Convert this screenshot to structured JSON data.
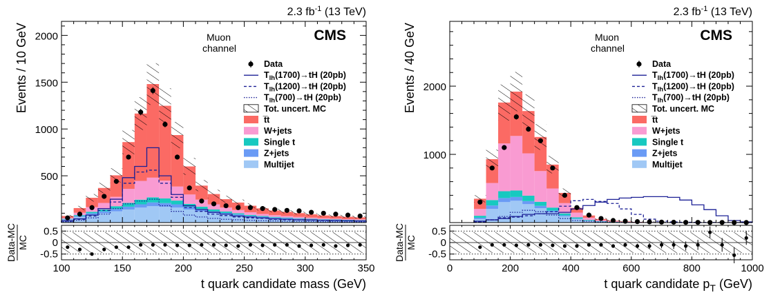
{
  "colors": {
    "ttbar": "#fb6a64",
    "wjets": "#f99bd2",
    "single_t": "#17c9c0",
    "zjets": "#6a9bf5",
    "multijet": "#a0c8f5",
    "signal": "#1a1f95"
  },
  "chart_data": [
    {
      "type": "bar",
      "stacked": true,
      "lumi": "2.3 fb",
      "lumi_sup": "-1",
      "energy": "(13 TeV)",
      "experiment": "CMS",
      "channel_line1": "Muon",
      "channel_line2": "channel",
      "xlabel": "t quark candidate mass (GeV)",
      "xlabel_sub": "",
      "ylabel": "Events / 10 GeV",
      "ratio_ylabel_top": "Data-MC",
      "ratio_ylabel_bottom": "MC",
      "xlim": [
        100,
        350
      ],
      "ylim": [
        0,
        2150
      ],
      "ratio_ylim": [
        -0.75,
        0.75
      ],
      "xticks": [
        100,
        150,
        200,
        250,
        300,
        350
      ],
      "xtick_labels": [
        "100",
        "150",
        "200",
        "250",
        "300",
        "350"
      ],
      "yticks": [
        500,
        1000,
        1500,
        2000
      ],
      "ytick_labels": [
        "500",
        "1000",
        "1500",
        "2000"
      ],
      "ratio_yticks": [
        0.5,
        0,
        -0.5
      ],
      "ratio_ytick_labels": [
        "0.5",
        "0",
        "-0.5"
      ],
      "bin_edges": [
        100,
        110,
        120,
        130,
        140,
        150,
        160,
        170,
        180,
        190,
        200,
        210,
        220,
        230,
        240,
        250,
        260,
        270,
        280,
        290,
        300,
        310,
        320,
        330,
        340,
        350
      ],
      "legend": [
        {
          "key": "data",
          "label": "Data"
        },
        {
          "key": "sig1",
          "label_main": "T",
          "label_sub": "lh",
          "label_rest": "(1700)→tH (20pb)"
        },
        {
          "key": "sig2",
          "label_main": "T",
          "label_sub": "lh",
          "label_rest": "(1200)→tH (20pb)"
        },
        {
          "key": "sig3",
          "label_main": "T",
          "label_sub": "lh",
          "label_rest": "(700)→tH (20pb)"
        },
        {
          "key": "unc",
          "label": "Tot. uncert. MC"
        },
        {
          "key": "ttbar",
          "label": "t̅t"
        },
        {
          "key": "wjets",
          "label": "W+jets"
        },
        {
          "key": "single_t",
          "label": "Single t"
        },
        {
          "key": "zjets",
          "label": "Z+jets"
        },
        {
          "key": "multijet",
          "label": "Multijet"
        }
      ],
      "series": [
        {
          "key": "multijet",
          "values": [
            30,
            60,
            85,
            100,
            120,
            140,
            160,
            175,
            170,
            160,
            140,
            120,
            100,
            85,
            72,
            60,
            52,
            45,
            40,
            35,
            30,
            27,
            24,
            22,
            20
          ]
        },
        {
          "key": "zjets",
          "values": [
            5,
            10,
            15,
            20,
            25,
            30,
            35,
            40,
            38,
            35,
            30,
            25,
            20,
            18,
            15,
            12,
            10,
            9,
            8,
            7,
            6,
            5,
            5,
            4,
            4
          ]
        },
        {
          "key": "single_t",
          "values": [
            5,
            10,
            15,
            20,
            30,
            40,
            50,
            55,
            50,
            40,
            30,
            25,
            20,
            15,
            12,
            10,
            8,
            7,
            6,
            5,
            5,
            4,
            4,
            3,
            3
          ]
        },
        {
          "key": "wjets",
          "values": [
            10,
            25,
            50,
            70,
            100,
            150,
            200,
            210,
            190,
            150,
            100,
            75,
            55,
            42,
            35,
            28,
            22,
            18,
            16,
            14,
            12,
            10,
            9,
            8,
            7
          ]
        },
        {
          "key": "ttbar",
          "values": [
            20,
            50,
            100,
            160,
            230,
            500,
            720,
            1000,
            800,
            550,
            300,
            150,
            110,
            90,
            80,
            70,
            60,
            50,
            45,
            40,
            35,
            30,
            28,
            25,
            22
          ]
        }
      ],
      "data": {
        "x": [
          105,
          115,
          125,
          135,
          145,
          155,
          165,
          175,
          185,
          195,
          205,
          215,
          225,
          235,
          245,
          255,
          265,
          275,
          285,
          295,
          305,
          315,
          325,
          335,
          345
        ],
        "y": [
          50,
          90,
          160,
          280,
          440,
          700,
          1180,
          1410,
          1050,
          700,
          370,
          230,
          200,
          180,
          160,
          160,
          150,
          140,
          130,
          125,
          110,
          100,
          90,
          80,
          70
        ]
      },
      "signals": [
        {
          "key": "sig1",
          "style": "solid",
          "values": [
            20,
            40,
            80,
            150,
            250,
            480,
            600,
            800,
            500,
            300,
            180,
            140,
            110,
            90,
            70,
            60,
            50,
            40,
            35,
            30,
            28,
            25,
            22,
            20,
            18
          ]
        },
        {
          "key": "sig2",
          "style": "dashed",
          "values": [
            15,
            35,
            70,
            130,
            220,
            420,
            540,
            560,
            420,
            270,
            160,
            120,
            90,
            75,
            60,
            50,
            45,
            35,
            30,
            28,
            25,
            22,
            20,
            18,
            16
          ]
        },
        {
          "key": "sig3",
          "style": "dotted",
          "values": [
            10,
            25,
            50,
            90,
            150,
            200,
            230,
            250,
            180,
            120,
            80,
            60,
            45,
            35,
            30,
            25,
            20,
            18,
            15,
            13,
            12,
            10,
            9,
            8,
            7
          ]
        }
      ],
      "ratio": {
        "x": [
          105,
          115,
          125,
          135,
          145,
          155,
          165,
          175,
          185,
          195,
          205,
          215,
          225,
          235,
          245,
          255,
          265,
          275,
          285,
          295,
          305,
          315,
          325,
          335,
          345
        ],
        "y": [
          -0.2,
          -0.3,
          -0.5,
          -0.3,
          -0.2,
          -0.2,
          -0.1,
          -0.1,
          -0.1,
          -0.12,
          -0.12,
          -0.1,
          -0.1,
          -0.12,
          -0.15,
          -0.1,
          -0.12,
          -0.1,
          -0.1,
          -0.15,
          -0.12,
          -0.1,
          -0.15,
          -0.12,
          -0.1
        ],
        "unc": 0.45
      }
    },
    {
      "type": "bar",
      "stacked": true,
      "lumi": "2.3 fb",
      "lumi_sup": "-1",
      "energy": "(13 TeV)",
      "experiment": "CMS",
      "channel_line1": "Muon",
      "channel_line2": "channel",
      "xlabel": "t quark candidate p",
      "xlabel_sub": "T",
      "xlabel_unit": " (GeV)",
      "ylabel": "Events / 40 GeV",
      "ratio_ylabel_top": "Data-MC",
      "ratio_ylabel_bottom": "MC",
      "xlim": [
        0,
        1000
      ],
      "ylim": [
        0,
        2950
      ],
      "ratio_ylim": [
        -0.75,
        0.75
      ],
      "xticks": [
        0,
        200,
        400,
        600,
        800,
        1000
      ],
      "xtick_labels": [
        "0",
        "200",
        "400",
        "600",
        "800",
        "1000"
      ],
      "yticks": [
        1000,
        2000
      ],
      "ytick_labels": [
        "1000",
        "2000"
      ],
      "ratio_yticks": [
        0.5,
        0,
        -0.5
      ],
      "ratio_ytick_labels": [
        "0.5",
        "0",
        "-0.5"
      ],
      "bin_edges": [
        80,
        120,
        160,
        200,
        240,
        280,
        320,
        360,
        400,
        440,
        480,
        520,
        560,
        600,
        640,
        680,
        720,
        760,
        800,
        840,
        880,
        920,
        960,
        1000
      ],
      "legend": [
        {
          "key": "data",
          "label": "Data"
        },
        {
          "key": "sig1",
          "label_main": "T",
          "label_sub": "lh",
          "label_rest": "(1700)→tH (20pb)"
        },
        {
          "key": "sig2",
          "label_main": "T",
          "label_sub": "lh",
          "label_rest": "(1200)→tH (20pb)"
        },
        {
          "key": "sig3",
          "label_main": "T",
          "label_sub": "lh",
          "label_rest": "(700)→tH (20pb)"
        },
        {
          "key": "unc",
          "label": "Tot. uncert. MC"
        },
        {
          "key": "ttbar",
          "label": "t̅t"
        },
        {
          "key": "wjets",
          "label": "W+jets"
        },
        {
          "key": "single_t",
          "label": "Single t"
        },
        {
          "key": "zjets",
          "label": "Z+jets"
        },
        {
          "key": "multijet",
          "label": "Multijet"
        }
      ],
      "series": [
        {
          "key": "multijet",
          "values": [
            50,
            200,
            300,
            320,
            270,
            210,
            150,
            90,
            50,
            25,
            12,
            6,
            3,
            2,
            1,
            1,
            0,
            0,
            0,
            0,
            0,
            0,
            0
          ]
        },
        {
          "key": "zjets",
          "values": [
            20,
            50,
            60,
            55,
            45,
            35,
            25,
            15,
            8,
            4,
            2,
            1,
            1,
            0,
            0,
            0,
            0,
            0,
            0,
            0,
            0,
            0,
            0
          ]
        },
        {
          "key": "single_t",
          "values": [
            30,
            80,
            100,
            95,
            80,
            60,
            45,
            30,
            18,
            10,
            6,
            3,
            2,
            1,
            1,
            0,
            0,
            0,
            0,
            0,
            0,
            0,
            0
          ]
        },
        {
          "key": "wjets",
          "values": [
            100,
            250,
            700,
            800,
            620,
            450,
            280,
            150,
            70,
            30,
            15,
            8,
            4,
            2,
            1,
            1,
            0,
            0,
            0,
            0,
            0,
            0,
            0
          ]
        },
        {
          "key": "ttbar",
          "values": [
            150,
            350,
            600,
            650,
            620,
            500,
            350,
            150,
            70,
            35,
            18,
            10,
            6,
            4,
            3,
            2,
            1,
            1,
            0,
            0,
            0,
            0,
            0
          ]
        }
      ],
      "data": {
        "x": [
          100,
          140,
          180,
          220,
          260,
          300,
          340,
          380,
          420,
          460,
          500,
          540,
          580,
          620,
          660,
          700,
          740,
          780,
          820,
          860,
          900,
          940,
          980
        ],
        "y": [
          300,
          800,
          1100,
          1550,
          1370,
          1200,
          800,
          400,
          220,
          110,
          60,
          30,
          20,
          14,
          10,
          7,
          5,
          3,
          3,
          2,
          2,
          1,
          1
        ]
      },
      "signals": [
        {
          "key": "sig1",
          "style": "solid",
          "values": [
            20,
            40,
            60,
            90,
            120,
            130,
            130,
            150,
            200,
            250,
            300,
            340,
            360,
            370,
            380,
            380,
            370,
            330,
            260,
            190,
            100,
            30,
            10
          ]
        },
        {
          "key": "sig2",
          "style": "dashed",
          "values": [
            10,
            40,
            70,
            80,
            100,
            130,
            160,
            240,
            320,
            340,
            310,
            280,
            200,
            120,
            50,
            20,
            10,
            5,
            3,
            2,
            1,
            1,
            0
          ]
        },
        {
          "key": "sig3",
          "style": "dotted",
          "values": [
            10,
            40,
            90,
            150,
            180,
            160,
            110,
            60,
            30,
            20,
            10,
            5,
            3,
            2,
            1,
            0,
            0,
            0,
            0,
            0,
            0,
            0,
            0
          ]
        }
      ],
      "ratio": {
        "x": [
          100,
          140,
          180,
          220,
          260,
          300,
          340,
          380,
          420,
          460,
          500,
          540,
          580,
          620,
          660,
          700,
          740,
          780,
          820,
          860,
          900,
          940,
          980
        ],
        "y": [
          -0.2,
          -0.1,
          -0.1,
          -0.12,
          -0.1,
          -0.1,
          -0.12,
          -0.15,
          -0.15,
          -0.1,
          -0.1,
          -0.15,
          -0.1,
          -0.15,
          -0.15,
          -0.1,
          -0.1,
          -0.15,
          -0.1,
          0.45,
          -0.1,
          -0.55,
          0.2
        ],
        "ratio_err": [
          0.02,
          0.02,
          0.02,
          0.02,
          0.02,
          0.02,
          0.03,
          0.04,
          0.05,
          0.06,
          0.06,
          0.08,
          0.08,
          0.1,
          0.12,
          0.15,
          0.18,
          0.2,
          0.22,
          0.25,
          0.3,
          0.35,
          0.3
        ],
        "unc": 0.45
      }
    }
  ]
}
